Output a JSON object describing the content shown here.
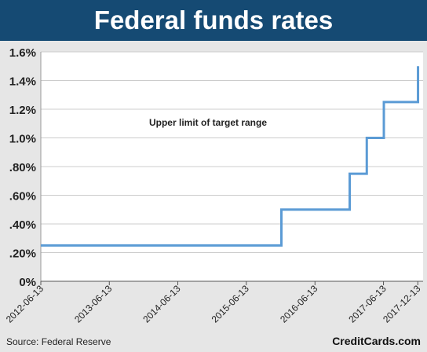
{
  "header": {
    "title": "Federal funds rates"
  },
  "footer": {
    "source": "Source: Federal Reserve",
    "brand": "CreditCards.com"
  },
  "colors": {
    "header_bg": "#154a73",
    "line": "#5b9bd5",
    "plot_bg": "#ffffff",
    "grid": "#cccccc",
    "page_bg": "#e6e6e6"
  },
  "chart_data": {
    "type": "line",
    "title": "Federal funds rates",
    "subtitle": "",
    "xlabel": "",
    "ylabel": "",
    "annotation": "Upper limit of target range",
    "x_ticks": [
      "2012-06-13",
      "2013-06-13",
      "2014-06-13",
      "2015-06-13",
      "2016-06-13",
      "2017-06-13",
      "2017-12-13"
    ],
    "y_ticks": [
      0,
      0.2,
      0.4,
      0.6,
      0.8,
      1.0,
      1.2,
      1.4,
      1.6
    ],
    "y_tick_labels": [
      "0%",
      ".20%",
      ".40%",
      ".60%",
      ".80%",
      "1.0%",
      "1.2%",
      "1.4%",
      "1.6%"
    ],
    "ylim": [
      0,
      1.6
    ],
    "xlim": [
      "2012-06-13",
      "2018-01-10"
    ],
    "grid": true,
    "step": true,
    "series": [
      {
        "name": "Upper limit of target range",
        "x": [
          "2012-06-13",
          "2015-12-17",
          "2016-12-15",
          "2017-03-16",
          "2017-06-15",
          "2017-12-14"
        ],
        "y": [
          0.25,
          0.5,
          0.75,
          1.0,
          1.25,
          1.5
        ]
      }
    ]
  }
}
